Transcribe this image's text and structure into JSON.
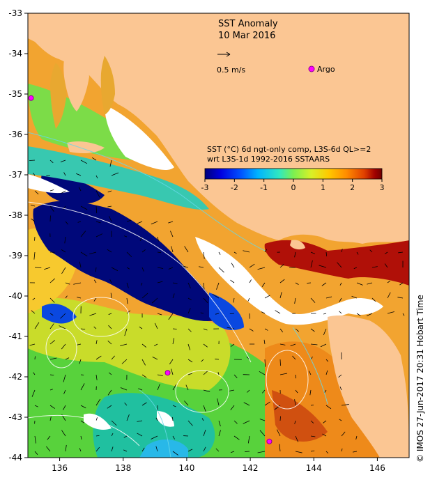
{
  "title": "SST Anomaly",
  "date": "10 Mar 2016",
  "vector_scale_label": "0.5 m/s",
  "argo_label": "Argo",
  "colorbar": {
    "label_line1": "SST (°C) 6d ngt-only comp, L3S-6d QL>=2",
    "label_line2": "wrt L3S-1d 1992-2016 SSTAARS",
    "ticks": [
      "-3",
      "-2",
      "-1",
      "0",
      "1",
      "2",
      "3"
    ],
    "colors": [
      "#00007a",
      "#0000e0",
      "#0050ff",
      "#00b4ff",
      "#30e8c0",
      "#7cf050",
      "#d8f028",
      "#ffc800",
      "#ff8c00",
      "#e04000",
      "#a00000",
      "#700000"
    ]
  },
  "axes": {
    "x_ticks": [
      "136",
      "138",
      "140",
      "142",
      "144",
      "146"
    ],
    "y_ticks": [
      "-33",
      "-34",
      "-35",
      "-36",
      "-37",
      "-38",
      "-39",
      "-40",
      "-41",
      "-42",
      "-43",
      "-44"
    ]
  },
  "credit": "© IMOS 27-Jun-2017 20:31 Hobart Time",
  "argo_floats": [
    {
      "lon": 135.1,
      "lat": -35.1
    },
    {
      "lon": 139.4,
      "lat": -41.9
    },
    {
      "lon": 142.6,
      "lat": -43.6
    }
  ],
  "colors": {
    "land": "#fbc693",
    "argo": "#ff00ff"
  }
}
